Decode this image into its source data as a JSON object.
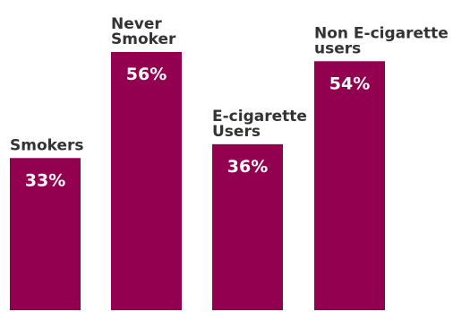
{
  "chart_data": {
    "type": "bar",
    "categories": [
      [
        "Smokers"
      ],
      [
        "Never",
        "Smoker"
      ],
      [
        "E-cigarette",
        "Users"
      ],
      [
        "Non E-cigarette",
        "users"
      ]
    ],
    "values": [
      33,
      56,
      36,
      54
    ],
    "value_labels": [
      "33%",
      "56%",
      "36%",
      "54%"
    ],
    "ylim": [
      0,
      56
    ],
    "grid": false,
    "legend": "none",
    "colors": {
      "bar": "#940050",
      "category_text": "#333333",
      "value_text": "#ffffff"
    }
  }
}
